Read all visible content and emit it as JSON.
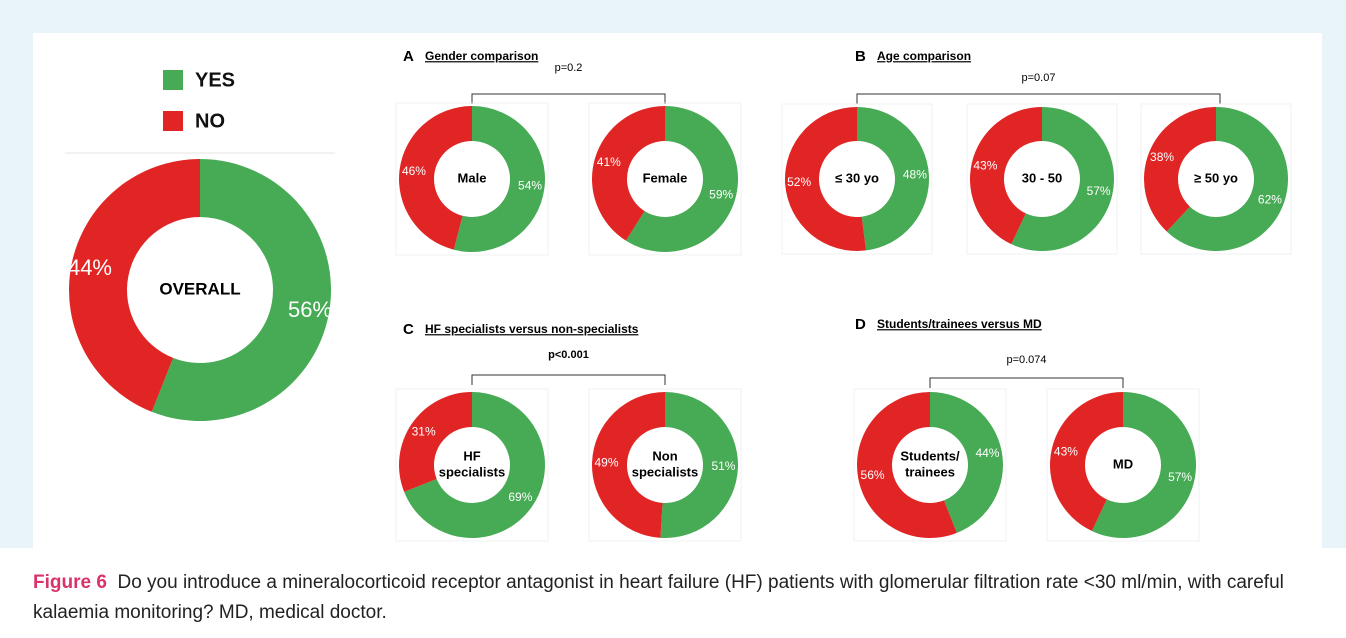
{
  "legend": [
    {
      "name": "YES",
      "color": "#46ab54"
    },
    {
      "name": "NO",
      "color": "#e12525"
    }
  ],
  "panels": [
    {
      "letter": "A",
      "title": "Gender comparison",
      "p": "p=0.2",
      "p_bold": false
    },
    {
      "letter": "B",
      "title": "Age comparison",
      "p": "p=0.07",
      "p_bold": false
    },
    {
      "letter": "C",
      "title": "HF specialists versus non-specialists",
      "p": "p<0.001",
      "p_bold": true
    },
    {
      "letter": "D",
      "title": "Students/trainees versus MD",
      "p": "p=0.074",
      "p_bold": false
    }
  ],
  "chart_data": [
    {
      "type": "pie",
      "center": [
        "OVERALL"
      ],
      "values": [
        56,
        44
      ],
      "value_labels": [
        "56%",
        "44%"
      ]
    },
    {
      "type": "pie",
      "center": [
        "Male"
      ],
      "values": [
        54,
        46
      ],
      "value_labels": [
        "54%",
        "46%"
      ]
    },
    {
      "type": "pie",
      "center": [
        "Female"
      ],
      "values": [
        59,
        41
      ],
      "value_labels": [
        "59%",
        "41%"
      ]
    },
    {
      "type": "pie",
      "center": [
        "≤ 30 yo"
      ],
      "values": [
        48,
        52
      ],
      "value_labels": [
        "48%",
        "52%"
      ]
    },
    {
      "type": "pie",
      "center": [
        "30 - 50"
      ],
      "values": [
        57,
        43
      ],
      "value_labels": [
        "57%",
        "43%"
      ]
    },
    {
      "type": "pie",
      "center": [
        "≥ 50 yo"
      ],
      "values": [
        62,
        38
      ],
      "value_labels": [
        "62%",
        "38%"
      ]
    },
    {
      "type": "pie",
      "center": [
        "HF",
        "specialists"
      ],
      "values": [
        69,
        31
      ],
      "value_labels": [
        "69%",
        "31%"
      ]
    },
    {
      "type": "pie",
      "center": [
        "Non",
        "specialists"
      ],
      "values": [
        51,
        49
      ],
      "value_labels": [
        "51%",
        "49%"
      ]
    },
    {
      "type": "pie",
      "center": [
        "Students/",
        "trainees"
      ],
      "values": [
        44,
        56
      ],
      "value_labels": [
        "44%",
        "56%"
      ]
    },
    {
      "type": "pie",
      "center": [
        "MD"
      ],
      "values": [
        57,
        43
      ],
      "value_labels": [
        "57%",
        "43%"
      ]
    }
  ],
  "caption": {
    "label": "Figure 6",
    "text": "Do you introduce a mineralocorticoid receptor antagonist in heart failure (HF) patients with glomerular filtration rate <30 ml/min, with careful kalaemia monitoring? MD, medical doctor."
  }
}
